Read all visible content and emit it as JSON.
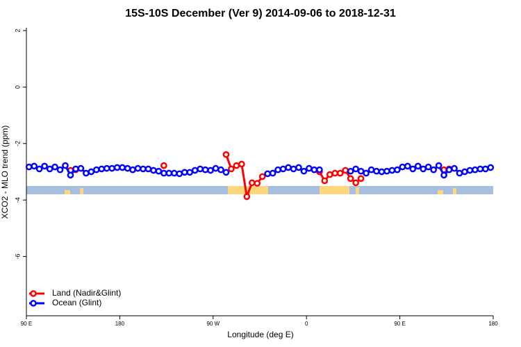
{
  "chart_data": {
    "type": "line",
    "title": "15S-10S December (Ver 9)   2014-09-06 to 2018-12-31",
    "x_label": "Longitude (deg E)",
    "y_label": "XCO2 - MLO trend (ppm)",
    "xlim": [
      90,
      540
    ],
    "xticks": [
      {
        "value": 90,
        "label": "90 E"
      },
      {
        "value": 180,
        "label": "180"
      },
      {
        "value": 270,
        "label": "90 W"
      },
      {
        "value": 360,
        "label": "0"
      },
      {
        "value": 450,
        "label": "90 E"
      },
      {
        "value": 540,
        "label": "180"
      }
    ],
    "ylim": [
      -8.1,
      2.1
    ],
    "yticks": [
      2,
      0,
      -2,
      -4,
      -6
    ],
    "legend": "bottom-left",
    "x": [
      92.5,
      97.5,
      102.5,
      107.5,
      112.5,
      117.5,
      122.5,
      127.5,
      132.5,
      137.5,
      142.5,
      147.5,
      152.5,
      157.5,
      162.5,
      167.5,
      172.5,
      177.5,
      182.5,
      187.5,
      192.5,
      197.5,
      202.5,
      207.5,
      212.5,
      217.5,
      222.5,
      227.5,
      232.5,
      237.5,
      242.5,
      247.5,
      252.5,
      257.5,
      262.5,
      267.5,
      272.5,
      277.5,
      282.5,
      287.5,
      292.5,
      297.5,
      302.5,
      307.5,
      312.5,
      317.5,
      322.5,
      327.5,
      332.5,
      337.5,
      342.5,
      347.5,
      352.5,
      357.5,
      362.5,
      367.5,
      372.5,
      377.5,
      382.5,
      387.5,
      392.5,
      397.5,
      402.5,
      407.5,
      412.5,
      417.5,
      422.5,
      427.5,
      432.5,
      437.5,
      442.5,
      447.5,
      452.5,
      457.5,
      462.5,
      467.5,
      472.5,
      477.5,
      482.5,
      487.5,
      492.5,
      497.5,
      502.5,
      507.5,
      512.5,
      517.5,
      522.5,
      527.5,
      532.5,
      537.5
    ],
    "series": [
      {
        "name": "Land (Nadir&Glint)",
        "color": "#ff0000",
        "values": [
          null,
          null,
          null,
          null,
          null,
          null,
          null,
          null,
          -2.95,
          -2.93,
          null,
          null,
          null,
          null,
          null,
          null,
          null,
          null,
          null,
          null,
          null,
          null,
          null,
          null,
          null,
          null,
          -2.78,
          null,
          null,
          null,
          null,
          null,
          null,
          null,
          null,
          null,
          null,
          null,
          -2.39,
          -2.9,
          -2.78,
          -2.73,
          -3.88,
          -3.39,
          -3.41,
          -3.17,
          null,
          null,
          null,
          null,
          null,
          null,
          null,
          null,
          null,
          null,
          -3.0,
          -3.32,
          -3.1,
          -3.05,
          -3.05,
          -2.95,
          -3.24,
          -3.39,
          -3.24,
          null,
          null,
          null,
          null,
          null,
          null,
          null,
          null,
          null,
          null,
          null,
          null,
          null,
          null,
          null,
          -2.93,
          -2.9,
          null,
          null,
          null,
          null,
          null,
          null,
          null,
          null
        ]
      },
      {
        "name": "Ocean (Glint)",
        "color": "#0000ff",
        "values": [
          -2.83,
          -2.8,
          -2.9,
          -2.8,
          -2.9,
          -2.83,
          -2.93,
          -2.78,
          -3.12,
          -2.9,
          -2.88,
          -3.05,
          -3.0,
          -2.93,
          -2.9,
          -2.88,
          -2.88,
          -2.85,
          -2.85,
          -2.88,
          -2.93,
          -2.88,
          -2.9,
          -2.9,
          -2.95,
          -2.98,
          -3.05,
          -3.05,
          -3.05,
          -3.07,
          -3.02,
          -3.02,
          -2.95,
          -2.9,
          -2.93,
          -2.95,
          -2.88,
          -2.93,
          -3.02,
          null,
          null,
          null,
          null,
          null,
          null,
          null,
          -3.07,
          -3.05,
          -2.93,
          -2.9,
          -2.85,
          -2.9,
          -2.85,
          -2.98,
          -2.88,
          -2.93,
          -2.93,
          null,
          null,
          null,
          null,
          null,
          -2.98,
          -2.9,
          -2.98,
          -3.05,
          -2.93,
          -2.98,
          -3.0,
          -2.98,
          -2.95,
          -2.93,
          -2.83,
          -2.8,
          -2.9,
          -2.8,
          -2.9,
          -2.83,
          -2.93,
          -2.78,
          -3.12,
          -2.93,
          -2.88,
          -3.05,
          -3.0,
          -2.95,
          -2.93,
          -2.9,
          -2.9,
          -2.85
        ]
      }
    ]
  }
}
